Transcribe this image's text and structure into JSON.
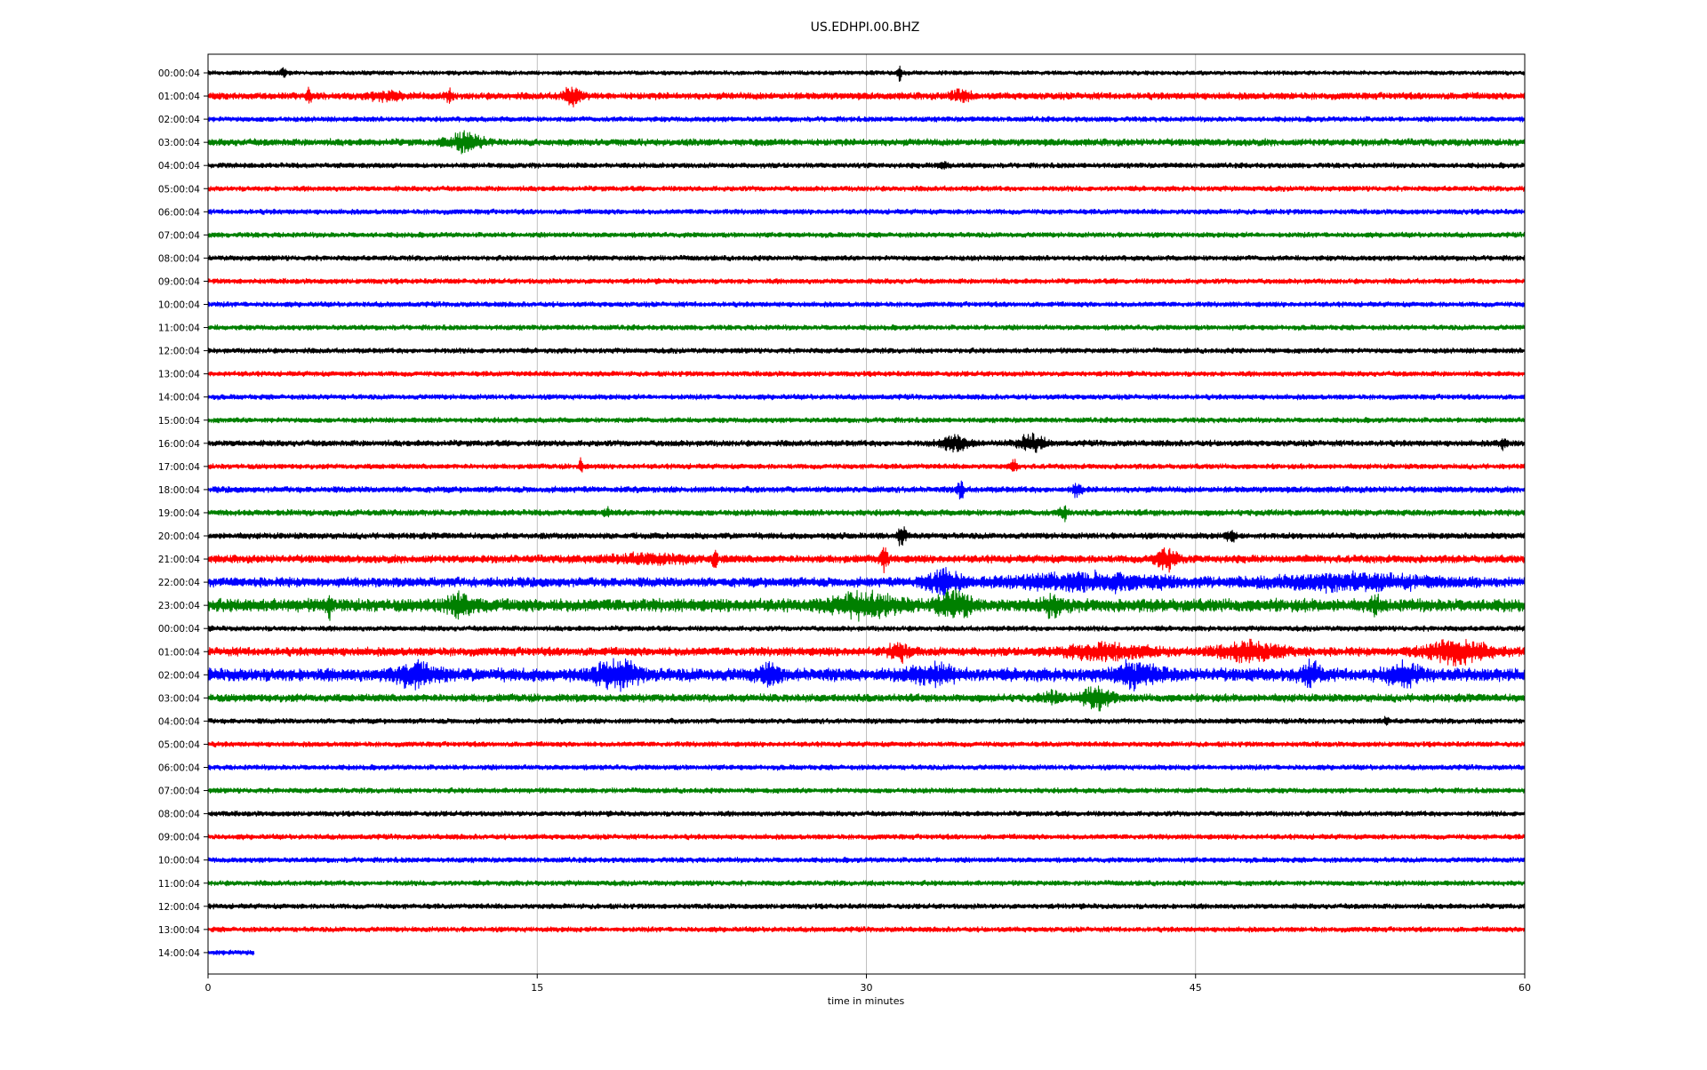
{
  "chart_data": {
    "type": "line",
    "title": "US.EDHPI.00.BHZ",
    "xlabel": "time in minutes",
    "ylabel": "",
    "xlim": [
      0,
      60
    ],
    "x_ticks": [
      0,
      15,
      30,
      45,
      60
    ],
    "grid": "vertical lines at x ticks",
    "legend": "none",
    "row_labels": [
      "00:00:04",
      "01:00:04",
      "02:00:04",
      "03:00:04",
      "04:00:04",
      "05:00:04",
      "06:00:04",
      "07:00:04",
      "08:00:04",
      "09:00:04",
      "10:00:04",
      "11:00:04",
      "12:00:04",
      "13:00:04",
      "14:00:04",
      "15:00:04",
      "16:00:04",
      "17:00:04",
      "18:00:04",
      "19:00:04",
      "20:00:04",
      "21:00:04",
      "22:00:04",
      "23:00:04",
      "00:00:04",
      "01:00:04",
      "02:00:04",
      "03:00:04",
      "04:00:04",
      "05:00:04",
      "06:00:04",
      "07:00:04",
      "08:00:04",
      "09:00:04",
      "10:00:04",
      "11:00:04",
      "12:00:04",
      "13:00:04",
      "14:00:04"
    ],
    "color_cycle": [
      "#000000",
      "#ff0000",
      "#0000ff",
      "#008000"
    ],
    "trace_end_minutes": [
      60,
      60,
      60,
      60,
      60,
      60,
      60,
      60,
      60,
      60,
      60,
      60,
      60,
      60,
      60,
      60,
      60,
      60,
      60,
      60,
      60,
      60,
      60,
      60,
      60,
      60,
      60,
      60,
      60,
      60,
      60,
      60,
      60,
      60,
      60,
      60,
      60,
      60,
      2.1
    ],
    "noise_level": [
      0.25,
      0.4,
      0.3,
      0.4,
      0.3,
      0.3,
      0.3,
      0.3,
      0.3,
      0.3,
      0.3,
      0.3,
      0.3,
      0.3,
      0.3,
      0.3,
      0.35,
      0.3,
      0.35,
      0.35,
      0.35,
      0.45,
      0.55,
      0.75,
      0.3,
      0.5,
      0.75,
      0.45,
      0.3,
      0.3,
      0.3,
      0.3,
      0.3,
      0.3,
      0.3,
      0.3,
      0.3,
      0.3,
      0.3
    ],
    "events": [
      {
        "row": 0,
        "t": 3.4,
        "amp": 0.4,
        "dur": 0.3
      },
      {
        "row": 0,
        "t": 31.5,
        "amp": 1.0,
        "dur": 0.15
      },
      {
        "row": 1,
        "t": 4.6,
        "amp": 0.8,
        "dur": 0.2
      },
      {
        "row": 1,
        "t": 8.0,
        "amp": 0.35,
        "dur": 1.6
      },
      {
        "row": 1,
        "t": 11.0,
        "amp": 0.5,
        "dur": 0.3
      },
      {
        "row": 1,
        "t": 16.6,
        "amp": 0.7,
        "dur": 0.8
      },
      {
        "row": 1,
        "t": 34.3,
        "amp": 0.55,
        "dur": 0.8
      },
      {
        "row": 3,
        "t": 11.7,
        "amp": 0.8,
        "dur": 1.5
      },
      {
        "row": 4,
        "t": 33.5,
        "amp": 0.25,
        "dur": 0.5
      },
      {
        "row": 16,
        "t": 34.0,
        "amp": 0.8,
        "dur": 1.2
      },
      {
        "row": 16,
        "t": 37.5,
        "amp": 0.7,
        "dur": 1.2
      },
      {
        "row": 16,
        "t": 59.0,
        "amp": 0.4,
        "dur": 0.4
      },
      {
        "row": 17,
        "t": 17.0,
        "amp": 0.9,
        "dur": 0.15
      },
      {
        "row": 17,
        "t": 36.7,
        "amp": 0.5,
        "dur": 0.3
      },
      {
        "row": 18,
        "t": 34.3,
        "amp": 0.8,
        "dur": 0.3
      },
      {
        "row": 18,
        "t": 39.6,
        "amp": 0.6,
        "dur": 0.4
      },
      {
        "row": 19,
        "t": 18.2,
        "amp": 0.4,
        "dur": 0.3
      },
      {
        "row": 19,
        "t": 39.0,
        "amp": 0.6,
        "dur": 0.4
      },
      {
        "row": 20,
        "t": 31.6,
        "amp": 0.8,
        "dur": 0.4
      },
      {
        "row": 20,
        "t": 46.6,
        "amp": 0.5,
        "dur": 0.4
      },
      {
        "row": 21,
        "t": 20.0,
        "amp": 0.3,
        "dur": 4.0
      },
      {
        "row": 21,
        "t": 23.1,
        "amp": 1.0,
        "dur": 0.2
      },
      {
        "row": 21,
        "t": 30.8,
        "amp": 0.8,
        "dur": 0.4
      },
      {
        "row": 21,
        "t": 43.7,
        "amp": 0.9,
        "dur": 1.0
      },
      {
        "row": 22,
        "t": 33.5,
        "amp": 0.9,
        "dur": 1.5
      },
      {
        "row": 22,
        "t": 40.0,
        "amp": 0.6,
        "dur": 8.0
      },
      {
        "row": 22,
        "t": 52.0,
        "amp": 0.5,
        "dur": 8.0
      },
      {
        "row": 23,
        "t": 5.5,
        "amp": 0.9,
        "dur": 0.3
      },
      {
        "row": 23,
        "t": 11.5,
        "amp": 0.7,
        "dur": 1.5
      },
      {
        "row": 23,
        "t": 30.0,
        "amp": 0.9,
        "dur": 3.0
      },
      {
        "row": 23,
        "t": 34.0,
        "amp": 1.0,
        "dur": 1.5
      },
      {
        "row": 23,
        "t": 38.5,
        "amp": 0.7,
        "dur": 1.0
      },
      {
        "row": 23,
        "t": 53.2,
        "amp": 0.6,
        "dur": 0.4
      },
      {
        "row": 25,
        "t": 31.5,
        "amp": 0.6,
        "dur": 1.0
      },
      {
        "row": 25,
        "t": 41.0,
        "amp": 0.6,
        "dur": 4.0
      },
      {
        "row": 25,
        "t": 47.5,
        "amp": 0.7,
        "dur": 3.0
      },
      {
        "row": 25,
        "t": 57.0,
        "amp": 0.9,
        "dur": 3.0
      },
      {
        "row": 26,
        "t": 9.5,
        "amp": 0.8,
        "dur": 2.0
      },
      {
        "row": 26,
        "t": 18.6,
        "amp": 1.0,
        "dur": 2.0
      },
      {
        "row": 26,
        "t": 25.5,
        "amp": 0.8,
        "dur": 1.0
      },
      {
        "row": 26,
        "t": 33.0,
        "amp": 0.7,
        "dur": 2.0
      },
      {
        "row": 26,
        "t": 42.3,
        "amp": 0.8,
        "dur": 2.0
      },
      {
        "row": 26,
        "t": 50.3,
        "amp": 0.8,
        "dur": 1.0
      },
      {
        "row": 26,
        "t": 54.5,
        "amp": 0.8,
        "dur": 1.5
      },
      {
        "row": 27,
        "t": 38.5,
        "amp": 0.4,
        "dur": 1.0
      },
      {
        "row": 27,
        "t": 40.5,
        "amp": 0.8,
        "dur": 1.5
      },
      {
        "row": 28,
        "t": 53.7,
        "amp": 0.35,
        "dur": 0.2
      }
    ]
  }
}
